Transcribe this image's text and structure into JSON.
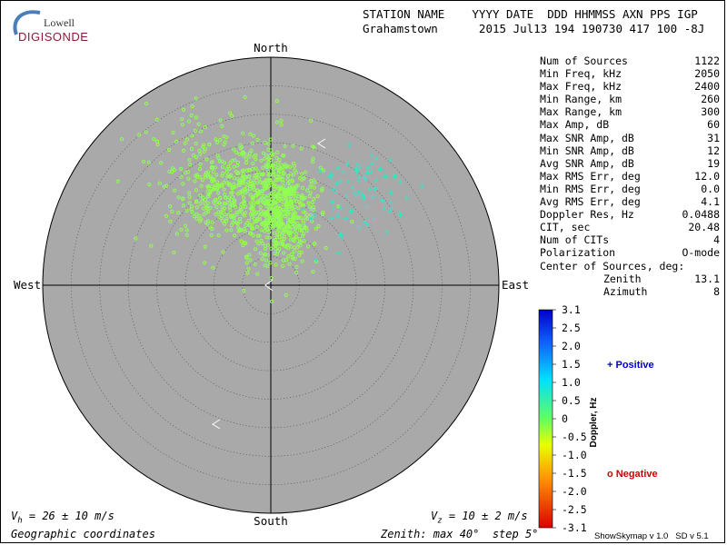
{
  "header": {
    "logo_top": "Lowell",
    "logo_bottom": "DIGISONDE",
    "line1": "STATION NAME    YYYY DATE  DDD HHMMSS AXN PPS IGP",
    "line2": "Grahamstown      2015 Jul13 194 190730 417 100 -8J"
  },
  "compass": {
    "north": "North",
    "south": "South",
    "east": "East",
    "west": "West"
  },
  "stats": [
    {
      "label": "Num of Sources",
      "value": "1122"
    },
    {
      "label": "Min Freq, kHz",
      "value": "2050"
    },
    {
      "label": "Max Freq, kHz",
      "value": "2400"
    },
    {
      "label": "Min Range, km",
      "value": "260"
    },
    {
      "label": "Max Range, km",
      "value": "300"
    },
    {
      "label": "Max Amp, dB",
      "value": "60"
    },
    {
      "label": "Max SNR Amp, dB",
      "value": "31"
    },
    {
      "label": "Min SNR Amp, dB",
      "value": "12"
    },
    {
      "label": "Avg SNR Amp, dB",
      "value": "19"
    },
    {
      "label": "Max RMS Err, deg",
      "value": "12.0"
    },
    {
      "label": "Min RMS Err, deg",
      "value": "0.0"
    },
    {
      "label": "Avg RMS Err, deg",
      "value": "4.1"
    },
    {
      "label": "Doppler Res, Hz",
      "value": "0.0488"
    },
    {
      "label": "CIT, sec",
      "value": "20.48"
    },
    {
      "label": "Num of CITs",
      "value": "4"
    },
    {
      "label": "Polarization",
      "value": "O-mode"
    },
    {
      "label": "Center of Sources, deg:",
      "value": ""
    },
    {
      "label": "Zenith",
      "value": "13.1",
      "indent": true
    },
    {
      "label": "Azimuth",
      "value": "8",
      "indent": true
    }
  ],
  "colorbar": {
    "title": "Doppler, Hz",
    "ticks": [
      "3.1",
      "2.5",
      "2.0",
      "1.5",
      "1.0",
      "0.5",
      "0",
      "-0.5",
      "-1.0",
      "-1.5",
      "-2.0",
      "-2.5",
      "-3.1"
    ],
    "positive_label": "+ Positive",
    "negative_label": "o Negative",
    "positive_color": "#0000cc",
    "negative_color": "#cc0000"
  },
  "footer": {
    "vh": "V",
    "vh_sub": "h",
    "vh_value": " = 26 ± 10 m/s",
    "vz": "V",
    "vz_sub": "z",
    "vz_value": " = 10 ± 2 m/s",
    "coords": "Geographic coordinates",
    "zenith": "Zenith: max 40°  step 5°",
    "version": "ShowSkymap v 1.0   SD v 5.1"
  },
  "colors": {
    "plot_bg": "#a9a9a9",
    "negative_marker": "#90ff50",
    "positive_marker": "#30e8c8"
  },
  "chart_data": {
    "type": "scatter",
    "projection": "polar skymap",
    "zenith_max_deg": 40,
    "zenith_step_deg": 5,
    "clusters": [
      {
        "name": "Negative",
        "marker": "o",
        "center_zenith_deg": 13.1,
        "center_azimuth_deg": 8,
        "doppler_hz_approx": -0.3
      },
      {
        "name": "Positive",
        "marker": "+",
        "center_zenith_deg": 24,
        "center_azimuth_deg": 45,
        "doppler_hz_approx": 0.8
      }
    ]
  }
}
